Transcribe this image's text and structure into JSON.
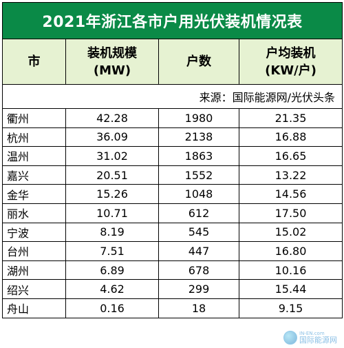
{
  "table": {
    "title": "2021年浙江各市户用光伏装机情况表",
    "headers": [
      {
        "line1": "市",
        "line2": ""
      },
      {
        "line1": "装机规模",
        "line2": "(MW)"
      },
      {
        "line1": "户数",
        "line2": ""
      },
      {
        "line1": "户均装机",
        "line2": "(KW/户)"
      }
    ],
    "source": "来源：国际能源网/光伏头条",
    "rows": [
      {
        "city": "衢州",
        "capacity": "42.28",
        "households": "1980",
        "avg": "21.35"
      },
      {
        "city": "杭州",
        "capacity": "36.09",
        "households": "2138",
        "avg": "16.88"
      },
      {
        "city": "温州",
        "capacity": "31.02",
        "households": "1863",
        "avg": "16.65"
      },
      {
        "city": "嘉兴",
        "capacity": "20.51",
        "households": "1552",
        "avg": "13.22"
      },
      {
        "city": "金华",
        "capacity": "15.26",
        "households": "1048",
        "avg": "14.56"
      },
      {
        "city": "丽水",
        "capacity": "10.71",
        "households": "612",
        "avg": "17.50"
      },
      {
        "city": "宁波",
        "capacity": "8.19",
        "households": "545",
        "avg": "15.02"
      },
      {
        "city": "台州",
        "capacity": "7.51",
        "households": "447",
        "avg": "16.80"
      },
      {
        "city": "湖州",
        "capacity": "6.89",
        "households": "678",
        "avg": "10.16"
      },
      {
        "city": "绍兴",
        "capacity": "4.62",
        "households": "299",
        "avg": "15.44"
      },
      {
        "city": "舟山",
        "capacity": "0.16",
        "households": "18",
        "avg": "9.15"
      }
    ]
  },
  "watermark": {
    "en": "IN-EN.com",
    "cn": "国际能源网"
  },
  "colors": {
    "title_bg": "#0a8a47",
    "header_bg": "#e6f2d2"
  }
}
